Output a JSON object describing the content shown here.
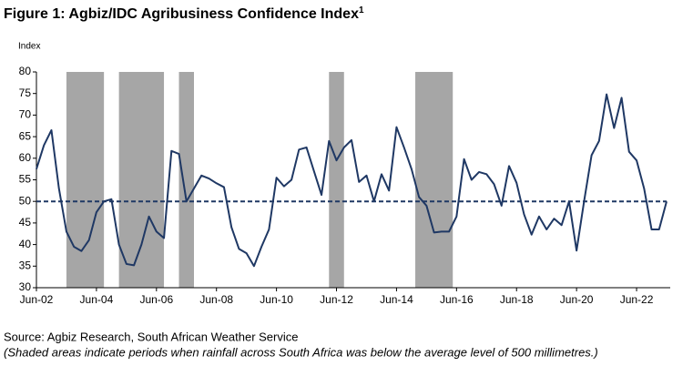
{
  "chart_data": {
    "type": "line",
    "title": "Figure 1: Agbiz/IDC Agribusiness Confidence Index",
    "title_superscript": "1",
    "y_label": "Index",
    "source": "Source: Agbiz Research, South African Weather Service",
    "note": "(Shaded areas indicate periods when rainfall across South Africa was below the average level of 500 millimetres.)",
    "categories": [
      "Jun-02",
      null,
      null,
      null,
      null,
      null,
      null,
      null,
      "Jun-04",
      null,
      null,
      null,
      null,
      null,
      null,
      null,
      "Jun-06",
      null,
      null,
      null,
      null,
      null,
      null,
      null,
      "Jun-08",
      null,
      null,
      null,
      null,
      null,
      null,
      null,
      "Jun-10",
      null,
      null,
      null,
      null,
      null,
      null,
      null,
      "Jun-12",
      null,
      null,
      null,
      null,
      null,
      null,
      null,
      "Jun-14",
      null,
      null,
      null,
      null,
      null,
      null,
      null,
      "Jun-16",
      null,
      null,
      null,
      null,
      null,
      null,
      null,
      "Jun-18",
      null,
      null,
      null,
      null,
      null,
      null,
      null,
      "Jun-20",
      null,
      null,
      null,
      null,
      null,
      null,
      null,
      "Jun-22",
      null,
      null,
      null,
      null
    ],
    "series": [
      {
        "name": "Agbiz/IDC Agribusiness Confidence Index",
        "color": "#1f3864",
        "values": [
          57.5,
          63,
          66.5,
          53,
          43,
          39.5,
          38.5,
          41,
          47.5,
          50,
          50.5,
          40,
          35.5,
          35.2,
          40,
          46.5,
          43,
          41.5,
          61.7,
          61,
          50,
          53,
          56,
          55.3,
          54.2,
          53.3,
          44,
          39,
          38,
          35,
          39.5,
          43.5,
          55.5,
          53.5,
          55,
          62,
          62.5,
          57,
          51.5,
          64,
          59.5,
          62.5,
          64.2,
          54.5,
          56,
          50,
          56.3,
          52.5,
          67.2,
          62.5,
          57.5,
          51,
          49,
          42.8,
          43,
          43,
          46.5,
          59.8,
          55,
          56.8,
          56.3,
          54,
          49,
          58.2,
          54.3,
          47,
          42.3,
          46.5,
          43.5,
          46,
          44.5,
          50,
          38.6,
          50,
          60.7,
          64,
          74.8,
          67,
          74,
          61.5,
          59.5,
          53,
          43.5,
          43.5,
          50
        ]
      }
    ],
    "shaded": [
      [
        4,
        9
      ],
      [
        11,
        17
      ],
      [
        19,
        21
      ],
      [
        39,
        41
      ],
      [
        50.5,
        55.5
      ]
    ],
    "shade_color": "#a6a6a6",
    "reference_line": 50,
    "reference_color": "#1f3864",
    "ylim": [
      30,
      80
    ],
    "yticks": [
      30,
      35,
      40,
      45,
      50,
      55,
      60,
      65,
      70,
      75,
      80
    ]
  }
}
